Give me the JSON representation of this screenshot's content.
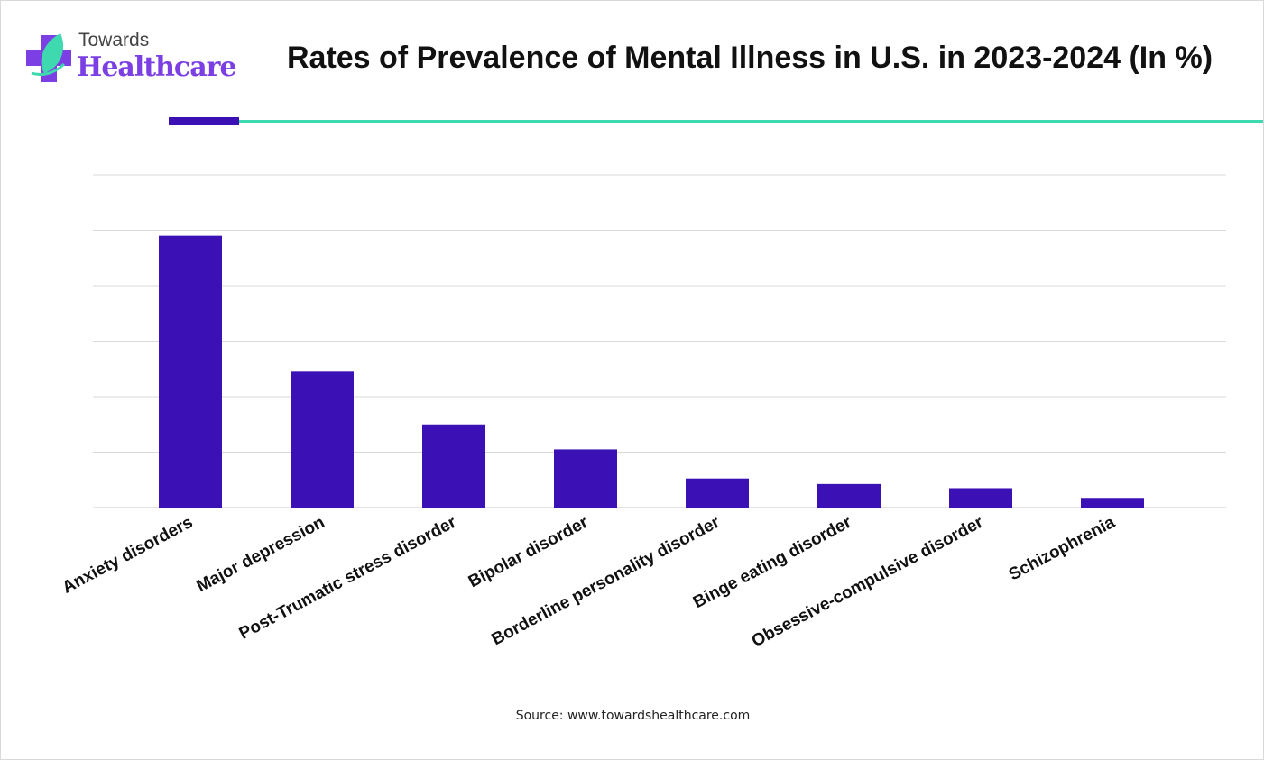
{
  "logo": {
    "line1": "Towards",
    "line2": "Healthcare"
  },
  "source": "Source: www.towardshealthcare.com",
  "colors": {
    "bar": "#3b10b5",
    "accent": "#3fd9b0",
    "brand": "#7b3fe4",
    "grid": "#d9d9d9"
  },
  "chart_data": {
    "type": "bar",
    "title": "Rates of Prevalence of Mental Illness in U.S. in 2023-2024 (In %)",
    "categories": [
      "Anxiety disorders",
      "Major depression",
      "Post-Trumatic stress disorder",
      "Bipolar disorder",
      "Borderline personality disorder",
      "Binge eating disorder",
      "Obsessive-compulsive disorder",
      "Schizophrenia"
    ],
    "values": [
      19.6,
      9.8,
      6.0,
      4.2,
      2.1,
      1.7,
      1.4,
      0.7
    ],
    "xlabel": "",
    "ylabel": "",
    "ylim": [
      0,
      24
    ],
    "y_gridlines": [
      0,
      4,
      8,
      12,
      16,
      20,
      24
    ],
    "y_tick_labels_shown": false,
    "grid": true,
    "legend": "none"
  }
}
